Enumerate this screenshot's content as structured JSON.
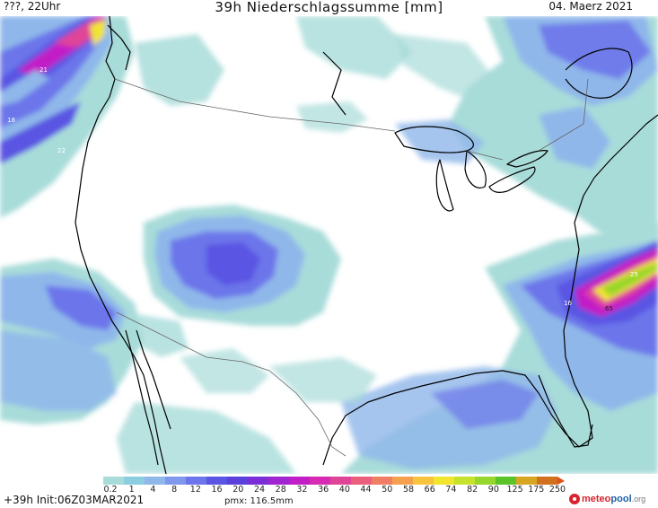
{
  "header": {
    "left": "???, 22Uhr",
    "title": "39h Niederschlagssumme [mm]",
    "date": "04. Maerz 2021"
  },
  "footer": {
    "init": "+39h Init:06Z03MAR2021",
    "pmx": "pmx: 116.5mm",
    "logo_part1": "meteo",
    "logo_part2": "pool",
    "logo_part3": ".org"
  },
  "legend": {
    "ticks": [
      "0.2",
      "1",
      "4",
      "8",
      "12",
      "16",
      "20",
      "24",
      "28",
      "32",
      "36",
      "40",
      "44",
      "50",
      "58",
      "66",
      "74",
      "82",
      "90",
      "125",
      "175",
      "250"
    ],
    "colors": [
      "#a8dcd9",
      "#8dcde0",
      "#8fb7ea",
      "#7f98ee",
      "#6c76ea",
      "#5a55e3",
      "#5b40dc",
      "#7a2fd6",
      "#a024cf",
      "#c21ec6",
      "#d62bb2",
      "#e04497",
      "#ea5f7c",
      "#f07e64",
      "#f5a04f",
      "#f8c43c",
      "#f1e52e",
      "#c6e22c",
      "#97d62c",
      "#5bc429",
      "#d7a723",
      "#d1701f"
    ]
  },
  "map_labels": {
    "pacific_21": "21",
    "pacific_18": "18",
    "pacific_22": "22",
    "atlantic_16": "16",
    "atlantic_65": "65",
    "atlantic_25": "25"
  },
  "colors": {
    "light_cyan": "#a8dcd9",
    "light_blue": "#8fb7ea",
    "blue": "#6c76ea",
    "violet": "#5a55e3",
    "magenta": "#c21ec6",
    "pink": "#e04497",
    "yellow": "#f1e52e",
    "green": "#97d62c"
  }
}
